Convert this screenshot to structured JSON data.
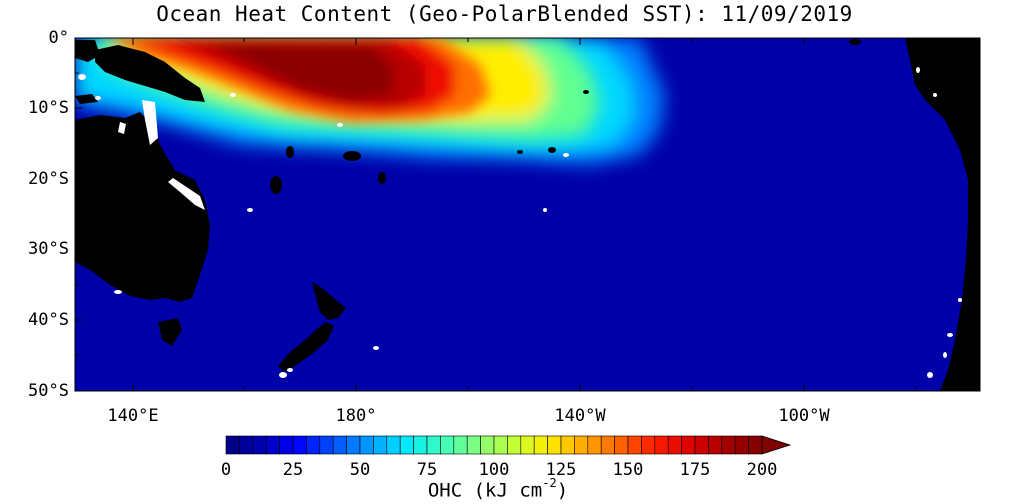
{
  "title": "Ocean Heat Content (Geo-PolarBlended SST): 11/09/2019",
  "y_axis_labels": [
    "0°",
    "10°S",
    "20°S",
    "30°S",
    "40°S",
    "50°S"
  ],
  "x_axis_labels": [
    "140°E",
    "180°",
    "140°W",
    "100°W"
  ],
  "colorbar": {
    "tick_labels": [
      "0",
      "25",
      "50",
      "75",
      "100",
      "125",
      "150",
      "175",
      "200"
    ],
    "units_main": "OHC (kJ cm",
    "units_exp": "-2",
    "units_close": ")",
    "range": [
      0,
      200
    ],
    "extend": "max",
    "colors": [
      "#00007f",
      "#0000b4",
      "#0000ff",
      "#0050ff",
      "#009bff",
      "#00e6ff",
      "#38ffc0",
      "#80ff80",
      "#c0ff38",
      "#ffee00",
      "#ffaa00",
      "#ff6400",
      "#ff1e00",
      "#dc0000",
      "#a50000",
      "#7f0000"
    ]
  },
  "map": {
    "region": "Western/Central South Pacific",
    "land_color": "#000000",
    "ocean_base_color": "#0000a0",
    "lat_range": [
      "0°",
      "50°S"
    ],
    "lon_range": [
      "130°E",
      "85°W"
    ]
  }
}
